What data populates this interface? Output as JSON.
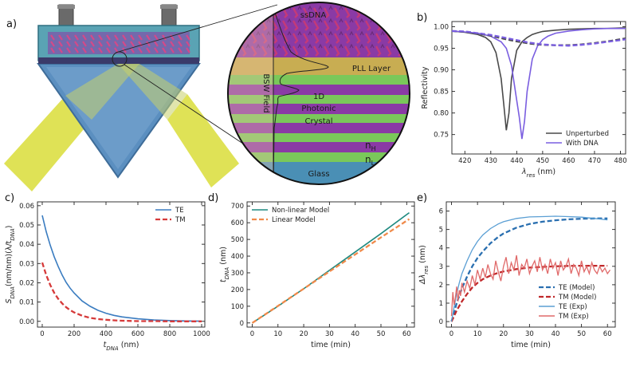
{
  "panel_labels": {
    "a": "a)",
    "b": "b)",
    "c": "c)",
    "d": "d)",
    "e": "e)"
  },
  "diagram": {
    "ssdna": "ssDNA",
    "pll_layer": "PLL Layer",
    "bsw_field": "BSW Field",
    "crystal_l1": "1D",
    "crystal_l2": "Photonic",
    "crystal_l3": "Crystal",
    "nh": "n",
    "nh_sub": "H",
    "nl": "n",
    "nl_sub": "L",
    "glass": "Glass",
    "colors": {
      "prism": "#5b8fc0",
      "beam": "#d8dd3a",
      "flow_cell": "#5aa3b4",
      "high_index": "#8a3aa5",
      "low_index": "#7ac85a",
      "pll": "#c8ad52",
      "dna": "#b0345a",
      "glass": "#4a8fb5"
    }
  },
  "chart_data": [
    {
      "id": "b",
      "type": "line",
      "xlabel": "λ",
      "xlabel_sub": "res",
      "xlabel_unit": " (nm)",
      "ylabel": "Reflectivity",
      "xlim": [
        415,
        482
      ],
      "ylim": [
        0.705,
        1.012
      ],
      "xticks": [
        420,
        430,
        440,
        450,
        460,
        470,
        480
      ],
      "yticks": [
        0.75,
        0.8,
        0.85,
        0.9,
        0.95,
        1.0
      ],
      "ytick_labels": [
        "0.75",
        "0.80",
        "0.85",
        "0.90",
        "0.95",
        "1.00"
      ],
      "legend_position": "bottom-right",
      "series": [
        {
          "name": "Unperturbed",
          "color": "#4a4a4a",
          "dash": false,
          "x": [
            415,
            420,
            425,
            428,
            430,
            432,
            434,
            435,
            436,
            437,
            438,
            440,
            442,
            444,
            446,
            448,
            450,
            455,
            460,
            465,
            470,
            475,
            480,
            482
          ],
          "y": [
            0.99,
            0.987,
            0.982,
            0.975,
            0.965,
            0.94,
            0.88,
            0.82,
            0.76,
            0.8,
            0.88,
            0.945,
            0.965,
            0.975,
            0.982,
            0.986,
            0.989,
            0.992,
            0.994,
            0.995,
            0.996,
            0.996,
            0.997,
            0.997
          ]
        },
        {
          "name": "With DNA",
          "color": "#7a5ee0",
          "dash": false,
          "x": [
            415,
            420,
            425,
            430,
            434,
            436,
            438,
            440,
            441,
            442,
            443,
            444,
            446,
            448,
            450,
            452,
            455,
            460,
            465,
            470,
            475,
            480,
            482
          ],
          "y": [
            0.99,
            0.988,
            0.985,
            0.978,
            0.965,
            0.95,
            0.91,
            0.83,
            0.79,
            0.74,
            0.78,
            0.85,
            0.925,
            0.955,
            0.97,
            0.978,
            0.985,
            0.99,
            0.993,
            0.995,
            0.996,
            0.996,
            0.996
          ]
        },
        {
          "name": "Unperturbed (model)",
          "color": "#4a4a4a",
          "dash": true,
          "legend": false,
          "x": [
            415,
            420,
            425,
            430,
            435,
            440,
            445,
            450,
            455,
            460,
            465,
            470,
            475,
            480,
            482
          ],
          "y": [
            0.99,
            0.988,
            0.984,
            0.979,
            0.972,
            0.966,
            0.961,
            0.958,
            0.957,
            0.957,
            0.959,
            0.962,
            0.966,
            0.971,
            0.973
          ]
        },
        {
          "name": "With DNA (model)",
          "color": "#7a5ee0",
          "dash": true,
          "legend": false,
          "x": [
            415,
            420,
            425,
            430,
            435,
            440,
            445,
            450,
            455,
            460,
            465,
            470,
            475,
            480,
            482
          ],
          "y": [
            0.99,
            0.989,
            0.985,
            0.981,
            0.975,
            0.969,
            0.963,
            0.959,
            0.957,
            0.956,
            0.958,
            0.961,
            0.965,
            0.969,
            0.971
          ]
        }
      ]
    },
    {
      "id": "c",
      "type": "line",
      "xlabel": "t",
      "xlabel_sub": "DNA",
      "xlabel_unit": " (nm)",
      "ylabel": "S",
      "ylabel_sub": "DNA",
      "ylabel_rest": "(nm/nm)(λ/t",
      "ylabel_sub2": "DNA",
      "ylabel_end": ")",
      "xlim": [
        -30,
        1020
      ],
      "ylim": [
        -0.003,
        0.062
      ],
      "xticks": [
        0,
        200,
        400,
        600,
        800,
        1000
      ],
      "yticks": [
        0.0,
        0.01,
        0.02,
        0.03,
        0.04,
        0.05,
        0.06
      ],
      "ytick_labels": [
        "0.00",
        "0.01",
        "0.02",
        "0.03",
        "0.04",
        "0.05",
        "0.06"
      ],
      "legend_position": "top-right",
      "series": [
        {
          "name": "TE",
          "color": "#3a7cc0",
          "dash": false,
          "x": [
            0,
            25,
            50,
            75,
            100,
            125,
            150,
            175,
            200,
            250,
            300,
            350,
            400,
            450,
            500,
            600,
            700,
            800,
            900,
            1000
          ],
          "y": [
            0.055,
            0.0465,
            0.0395,
            0.0335,
            0.0285,
            0.024,
            0.0202,
            0.0172,
            0.0147,
            0.0106,
            0.0078,
            0.0057,
            0.0042,
            0.0031,
            0.0023,
            0.0013,
            0.0007,
            0.0004,
            0.0002,
            0.0001
          ]
        },
        {
          "name": "TM",
          "color": "#d63a3a",
          "dash": true,
          "x": [
            0,
            25,
            50,
            75,
            100,
            125,
            150,
            175,
            200,
            250,
            300,
            350,
            400,
            450,
            500,
            600,
            700,
            800,
            900,
            1000
          ],
          "y": [
            0.0305,
            0.024,
            0.0189,
            0.0148,
            0.0117,
            0.0093,
            0.0073,
            0.0058,
            0.0046,
            0.0029,
            0.0018,
            0.0012,
            0.0008,
            0.0005,
            0.0003,
            0.0001,
            0.0001,
            0.0,
            0.0,
            0.0
          ]
        }
      ]
    },
    {
      "id": "d",
      "type": "line",
      "xlabel": "time (min)",
      "ylabel": "t",
      "ylabel_sub": "DNA",
      "ylabel_unit": " (nm)",
      "xlim": [
        -2,
        63
      ],
      "ylim": [
        -25,
        725
      ],
      "xticks": [
        0,
        10,
        20,
        30,
        40,
        50,
        60
      ],
      "yticks": [
        0,
        100,
        200,
        300,
        400,
        500,
        600,
        700
      ],
      "ytick_labels": [
        "0",
        "100",
        "200",
        "300",
        "400",
        "500",
        "600",
        "700"
      ],
      "legend_position": "top-left",
      "series": [
        {
          "name": "Non-linear Model",
          "color": "#1f8a80",
          "dash": false,
          "x": [
            0,
            10,
            20,
            30,
            40,
            50,
            61
          ],
          "y": [
            0,
            100,
            205,
            315,
            425,
            535,
            660
          ]
        },
        {
          "name": "Linear Model",
          "color": "#f08a4a",
          "dash": true,
          "x": [
            0,
            10,
            20,
            30,
            40,
            50,
            61
          ],
          "y": [
            0,
            102,
            205,
            308,
            410,
            512,
            622
          ]
        }
      ]
    },
    {
      "id": "e",
      "type": "line",
      "xlabel": "time (min)",
      "ylabel": "Δλ",
      "ylabel_sub": "res",
      "ylabel_unit": " (nm)",
      "xlim": [
        -2,
        63
      ],
      "ylim": [
        -0.3,
        6.5
      ],
      "xticks": [
        0,
        10,
        20,
        30,
        40,
        50,
        60
      ],
      "yticks": [
        0,
        1,
        2,
        3,
        4,
        5,
        6
      ],
      "ytick_labels": [
        "0",
        "1",
        "2",
        "3",
        "4",
        "5",
        "6"
      ],
      "legend_position": "bottom-right",
      "series": [
        {
          "name": "TE (Model)",
          "color": "#2a6fb0",
          "dash": true,
          "x": [
            0,
            2,
            4,
            6,
            8,
            10,
            12,
            15,
            18,
            20,
            25,
            30,
            35,
            40,
            45,
            50,
            55,
            60
          ],
          "y": [
            0,
            1.0,
            1.8,
            2.45,
            3.0,
            3.45,
            3.8,
            4.25,
            4.6,
            4.78,
            5.1,
            5.3,
            5.42,
            5.5,
            5.55,
            5.58,
            5.6,
            5.6
          ]
        },
        {
          "name": "TM (Model)",
          "color": "#c0282a",
          "dash": true,
          "x": [
            0,
            2,
            4,
            6,
            8,
            10,
            12,
            15,
            18,
            20,
            25,
            30,
            35,
            40,
            45,
            50,
            55,
            60
          ],
          "y": [
            0,
            0.6,
            1.1,
            1.5,
            1.85,
            2.1,
            2.3,
            2.5,
            2.65,
            2.72,
            2.85,
            2.93,
            2.97,
            3.0,
            3.02,
            3.03,
            3.03,
            3.03
          ]
        },
        {
          "name": "TE (Exp)",
          "color": "#5b9fd4",
          "dash": false,
          "x": [
            0,
            1,
            2,
            3,
            4,
            6,
            8,
            10,
            12,
            15,
            18,
            20,
            25,
            30,
            35,
            40,
            45,
            50,
            55,
            60
          ],
          "y": [
            0,
            0.8,
            1.5,
            2.1,
            2.6,
            3.3,
            3.9,
            4.35,
            4.7,
            5.05,
            5.3,
            5.42,
            5.6,
            5.68,
            5.7,
            5.72,
            5.7,
            5.67,
            5.6,
            5.52
          ]
        },
        {
          "name": "TM (Exp)",
          "color": "#e06a6a",
          "dash": false,
          "x": [
            0,
            0.5,
            1,
            1.5,
            2,
            2.5,
            3,
            3.5,
            4,
            5,
            6,
            7,
            8,
            9,
            10,
            11,
            12,
            13,
            14,
            15,
            16,
            17,
            18,
            19,
            20,
            21,
            22,
            23,
            24,
            25,
            26,
            27,
            28,
            29,
            30,
            31,
            32,
            33,
            34,
            35,
            36,
            37,
            38,
            39,
            40,
            41,
            42,
            43,
            44,
            45,
            46,
            47,
            48,
            49,
            50,
            51,
            52,
            53,
            54,
            55,
            56,
            57,
            58,
            59,
            60,
            61
          ],
          "y": [
            0.3,
            1.6,
            0.9,
            1.3,
            1.9,
            1.1,
            1.7,
            1.4,
            2.1,
            1.6,
            2.2,
            1.8,
            2.5,
            2.0,
            2.8,
            2.3,
            2.9,
            2.4,
            3.1,
            2.6,
            2.3,
            3.3,
            2.7,
            2.2,
            3.0,
            3.5,
            2.6,
            3.2,
            2.8,
            3.6,
            2.5,
            3.1,
            2.9,
            3.4,
            2.6,
            3.0,
            3.3,
            2.7,
            3.5,
            2.8,
            3.1,
            2.6,
            3.4,
            2.9,
            3.2,
            2.5,
            3.3,
            2.8,
            3.0,
            3.4,
            2.6,
            3.1,
            2.9,
            2.5,
            3.3,
            2.7,
            3.0,
            2.6,
            3.2,
            2.8,
            2.6,
            3.0,
            2.7,
            2.9,
            2.6,
            2.8
          ]
        }
      ]
    }
  ]
}
